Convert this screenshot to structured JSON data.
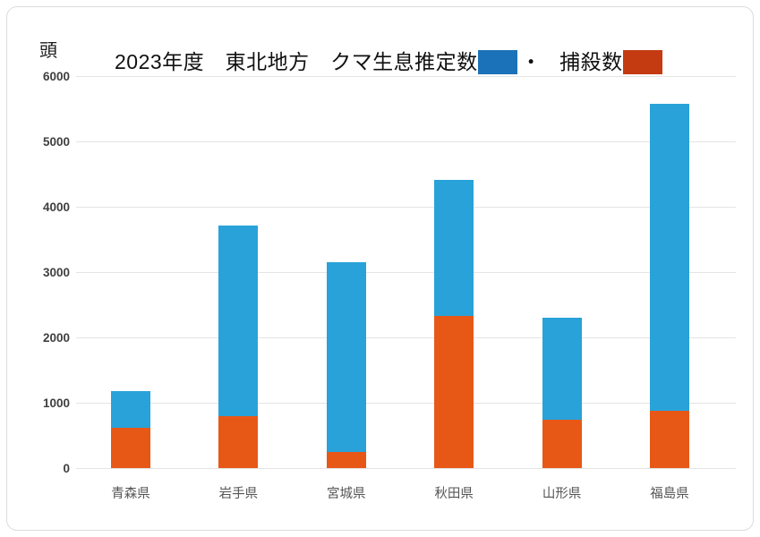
{
  "unit_label": "頭",
  "title": {
    "part1": "2023年度　東北地方　クマ生息推定数",
    "separator": "・",
    "part2": "捕殺数"
  },
  "colors": {
    "bar_blue": "#29A2D9",
    "bar_orange": "#E75817",
    "legend_blue": "#1B72B8",
    "legend_red": "#C43B11",
    "gridline": "#E4E4E4",
    "ytick_text": "#3F3F3F",
    "xlabel_text": "#555555",
    "title_text": "#111111"
  },
  "chart_data": {
    "type": "bar",
    "variant": "overlay-stacked",
    "title": "2023年度　東北地方　クマ生息推定数・捕殺数",
    "ylabel": "頭",
    "ylim": [
      0,
      6000
    ],
    "ytick_step": 1000,
    "ytick_labels": [
      "0",
      "1000",
      "2000",
      "3000",
      "4000",
      "5000",
      "6000"
    ],
    "grid": true,
    "legend_position": "in-title",
    "categories": [
      "青森県",
      "岩手県",
      "宮城県",
      "秋田県",
      "山形県",
      "福島県"
    ],
    "series": [
      {
        "name": "クマ生息推定数",
        "color_key": "bar_blue",
        "values": [
          1180,
          3710,
          3150,
          4410,
          2300,
          5580
        ]
      },
      {
        "name": "捕殺数",
        "color_key": "bar_orange",
        "values": [
          620,
          800,
          240,
          2330,
          740,
          870
        ]
      }
    ]
  }
}
